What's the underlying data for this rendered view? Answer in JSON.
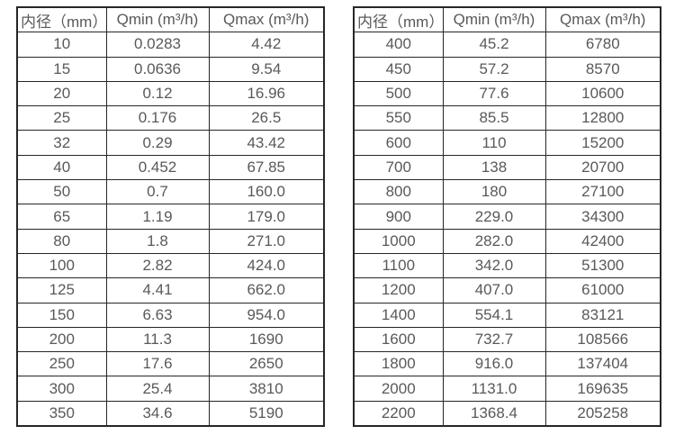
{
  "tables": [
    {
      "name": "small-diameter-flow-table",
      "headers": [
        "内径（mm）",
        "Qmin (m³/h)",
        "Qmax (m³/h)"
      ],
      "rows": [
        [
          "10",
          "0.0283",
          "4.42"
        ],
        [
          "15",
          "0.0636",
          "9.54"
        ],
        [
          "20",
          "0.12",
          "16.96"
        ],
        [
          "25",
          "0.176",
          "26.5"
        ],
        [
          "32",
          "0.29",
          "43.42"
        ],
        [
          "40",
          "0.452",
          "67.85"
        ],
        [
          "50",
          "0.7",
          "160.0"
        ],
        [
          "65",
          "1.19",
          "179.0"
        ],
        [
          "80",
          "1.8",
          "271.0"
        ],
        [
          "100",
          "2.82",
          "424.0"
        ],
        [
          "125",
          "4.41",
          "662.0"
        ],
        [
          "150",
          "6.63",
          "954.0"
        ],
        [
          "200",
          "11.3",
          "1690"
        ],
        [
          "250",
          "17.6",
          "2650"
        ],
        [
          "300",
          "25.4",
          "3810"
        ],
        [
          "350",
          "34.6",
          "5190"
        ]
      ]
    },
    {
      "name": "large-diameter-flow-table",
      "headers": [
        "内径（mm）",
        "Qmin (m³/h)",
        "Qmax (m³/h)"
      ],
      "rows": [
        [
          "400",
          "45.2",
          "6780"
        ],
        [
          "450",
          "57.2",
          "8570"
        ],
        [
          "500",
          "77.6",
          "10600"
        ],
        [
          "550",
          "85.5",
          "12800"
        ],
        [
          "600",
          "110",
          "15200"
        ],
        [
          "700",
          "138",
          "20700"
        ],
        [
          "800",
          "180",
          "27100"
        ],
        [
          "900",
          "229.0",
          "34300"
        ],
        [
          "1000",
          "282.0",
          "42400"
        ],
        [
          "1100",
          "342.0",
          "51300"
        ],
        [
          "1200",
          "407.0",
          "61000"
        ],
        [
          "1400",
          "554.1",
          "83121"
        ],
        [
          "1600",
          "732.7",
          "108566"
        ],
        [
          "1800",
          "916.0",
          "137404"
        ],
        [
          "2000",
          "1131.0",
          "169635"
        ],
        [
          "2200",
          "1368.4",
          "205258"
        ]
      ]
    }
  ],
  "colors": {
    "border": "#262626",
    "text": "#595959",
    "background": "#ffffff"
  }
}
